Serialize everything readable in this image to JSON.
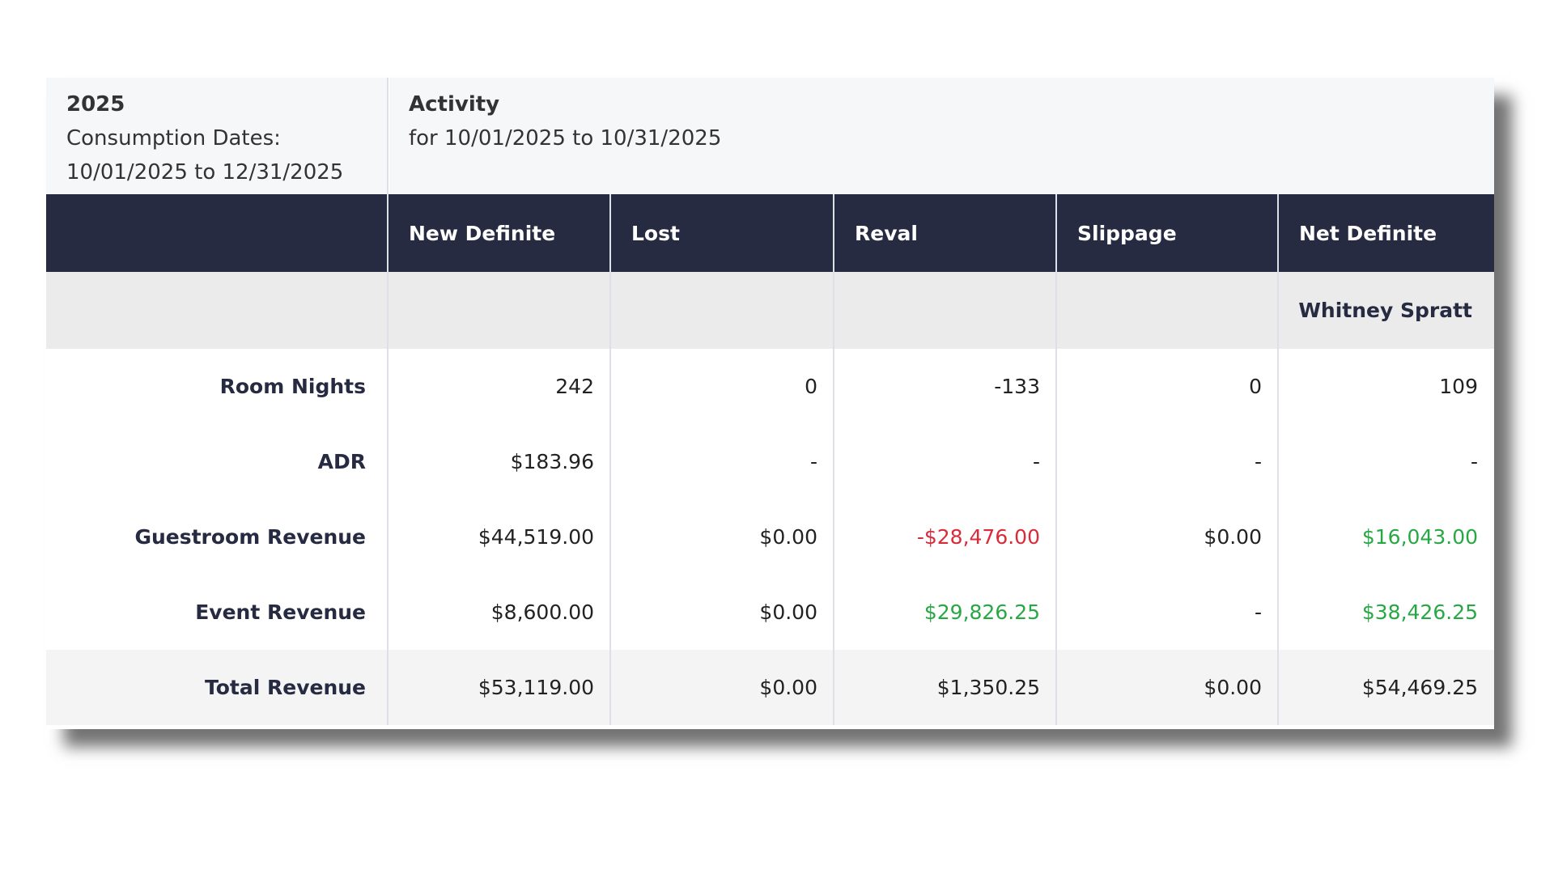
{
  "header": {
    "year": "2025",
    "consumption_label": "Consumption Dates:",
    "consumption_range": "10/01/2025 to 12/31/2025"
  },
  "activity": {
    "title": "Activity",
    "range": "for 10/01/2025 to 10/31/2025"
  },
  "table": {
    "columns": [
      "New Definite",
      "Lost",
      "Reval",
      "Slippage",
      "Net Definite"
    ],
    "group": "Whitney Spratt",
    "rows": [
      {
        "label": "Room Nights",
        "cells": [
          "242",
          "0",
          "-133",
          "0",
          "109"
        ]
      },
      {
        "label": "ADR",
        "cells": [
          "$183.96",
          "-",
          "-",
          "-",
          "-"
        ]
      },
      {
        "label": "Guestroom Revenue",
        "cells": [
          "$44,519.00",
          "$0.00",
          "-$28,476.00",
          "$0.00",
          "$16,043.00"
        ]
      },
      {
        "label": "Event Revenue",
        "cells": [
          "$8,600.00",
          "$0.00",
          "$29,826.25",
          "-",
          "$38,426.25"
        ]
      },
      {
        "label": "Total Revenue",
        "cells": [
          "$53,119.00",
          "$0.00",
          "$1,350.25",
          "$0.00",
          "$54,469.25"
        ]
      }
    ]
  }
}
